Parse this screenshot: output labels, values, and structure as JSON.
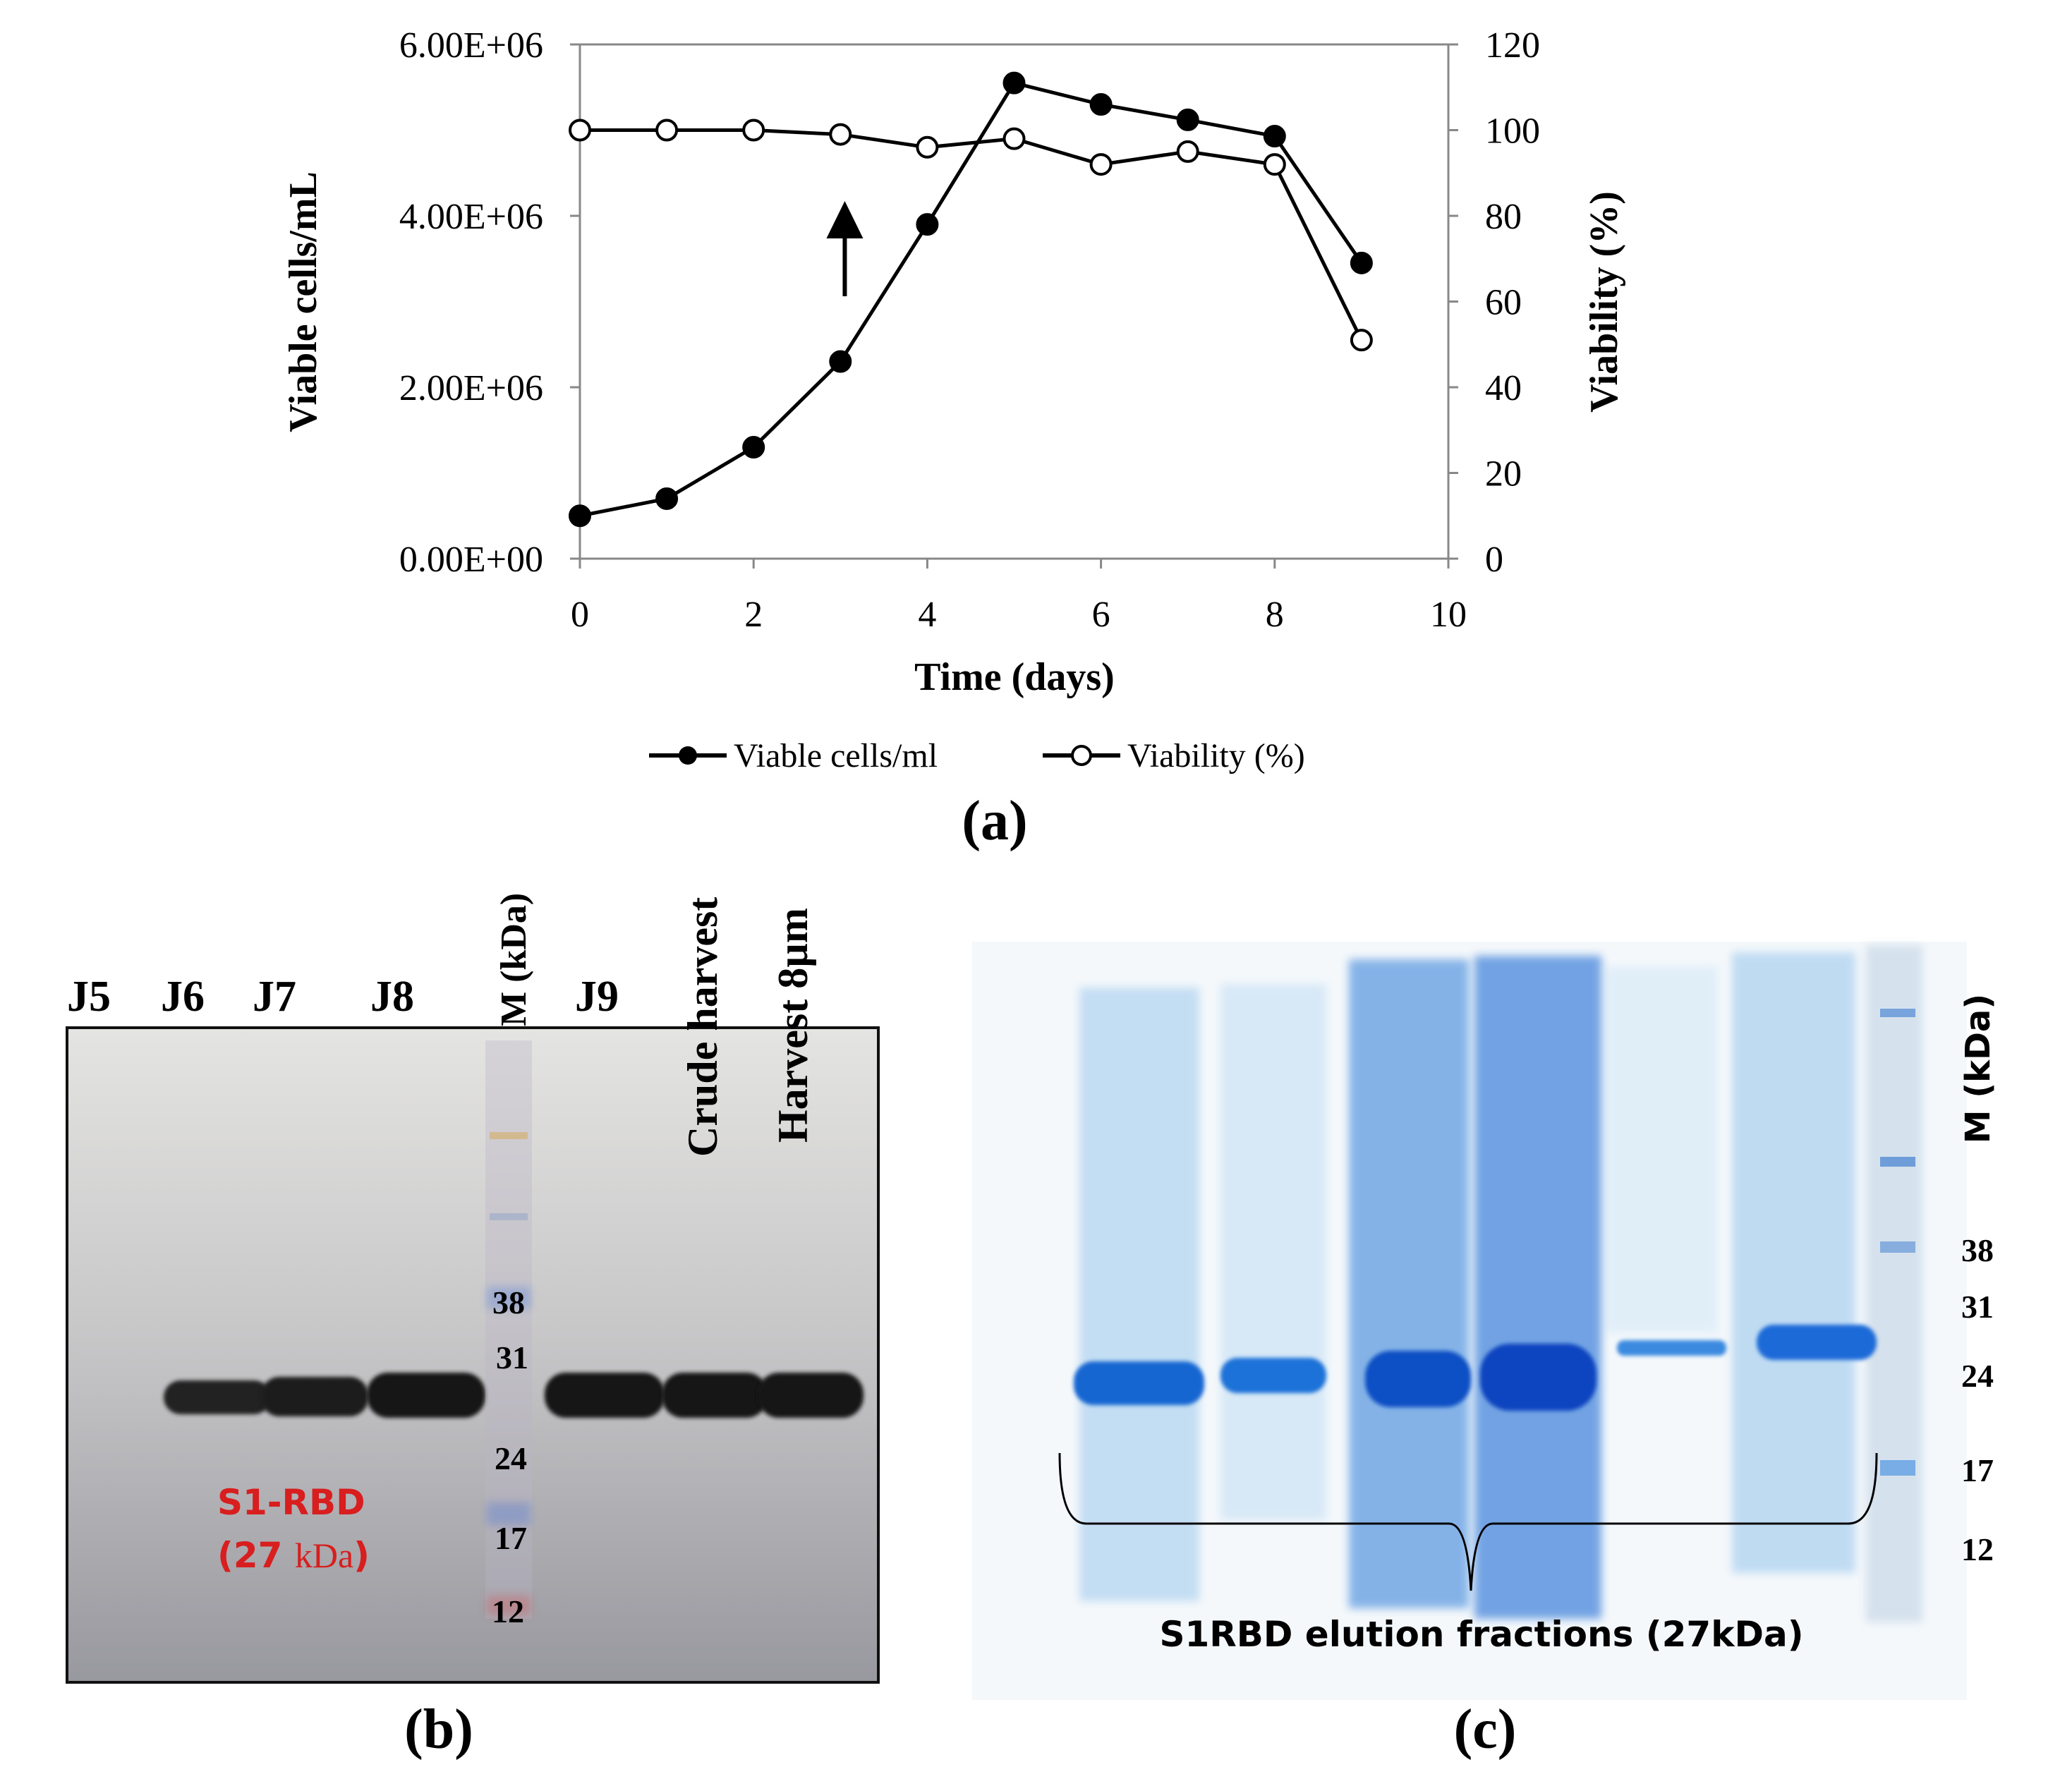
{
  "panel_a": {
    "label": "(a)",
    "chart_data": {
      "type": "line",
      "x": [
        0,
        1,
        2,
        3,
        4,
        5,
        6,
        7,
        8,
        9
      ],
      "xlabel": "Time (days)",
      "xlim": [
        0,
        10
      ],
      "xticks": [
        "0",
        "2",
        "4",
        "6",
        "8",
        "10"
      ],
      "ylabel": "Viable cells/mL",
      "ylim": [
        0,
        6000000
      ],
      "yticks": [
        "0.00E+00",
        "2.00E+06",
        "4.00E+06",
        "6.00E+06"
      ],
      "y2label": "Viability (%)",
      "y2lim": [
        0,
        120
      ],
      "y2ticks": [
        "0",
        "20",
        "40",
        "60",
        "80",
        "100",
        "120"
      ],
      "series": [
        {
          "name": "Viable cells/ml",
          "axis": "left",
          "marker": "filled-circle",
          "values": [
            500000,
            700000,
            1300000,
            2300000,
            3900000,
            5550000,
            5300000,
            5120000,
            4930000,
            3450000
          ]
        },
        {
          "name": "Viability (%)",
          "axis": "right",
          "marker": "open-circle",
          "values": [
            100,
            100,
            100,
            99,
            96,
            98,
            92,
            95,
            92,
            51
          ]
        }
      ],
      "annotations": [
        {
          "type": "arrow",
          "x": 3.05,
          "direction": "up"
        }
      ],
      "legend_position": "bottom-center"
    }
  },
  "panel_b": {
    "label": "(b)",
    "lane_labels": [
      "J5",
      "J6",
      "J7",
      "J8",
      "M (kDa)",
      "J9",
      "Crude harvest",
      "Harvest  8µm"
    ],
    "marker_labels": [
      "38",
      "31",
      "24",
      "17",
      "12"
    ],
    "band_name": "S1-RBD",
    "band_size_value": "(27 ",
    "band_size_unit": "kDa",
    "band_size_close": ")",
    "band_color": "#d81e1e"
  },
  "panel_c": {
    "label": "(c)",
    "marker_title": "M (kDa)",
    "marker_labels": [
      "38",
      "31",
      "24",
      "17",
      "12"
    ],
    "bracket_caption": "S1RBD elution fractions (27kDa)",
    "stain_color": "#1e78d8"
  }
}
